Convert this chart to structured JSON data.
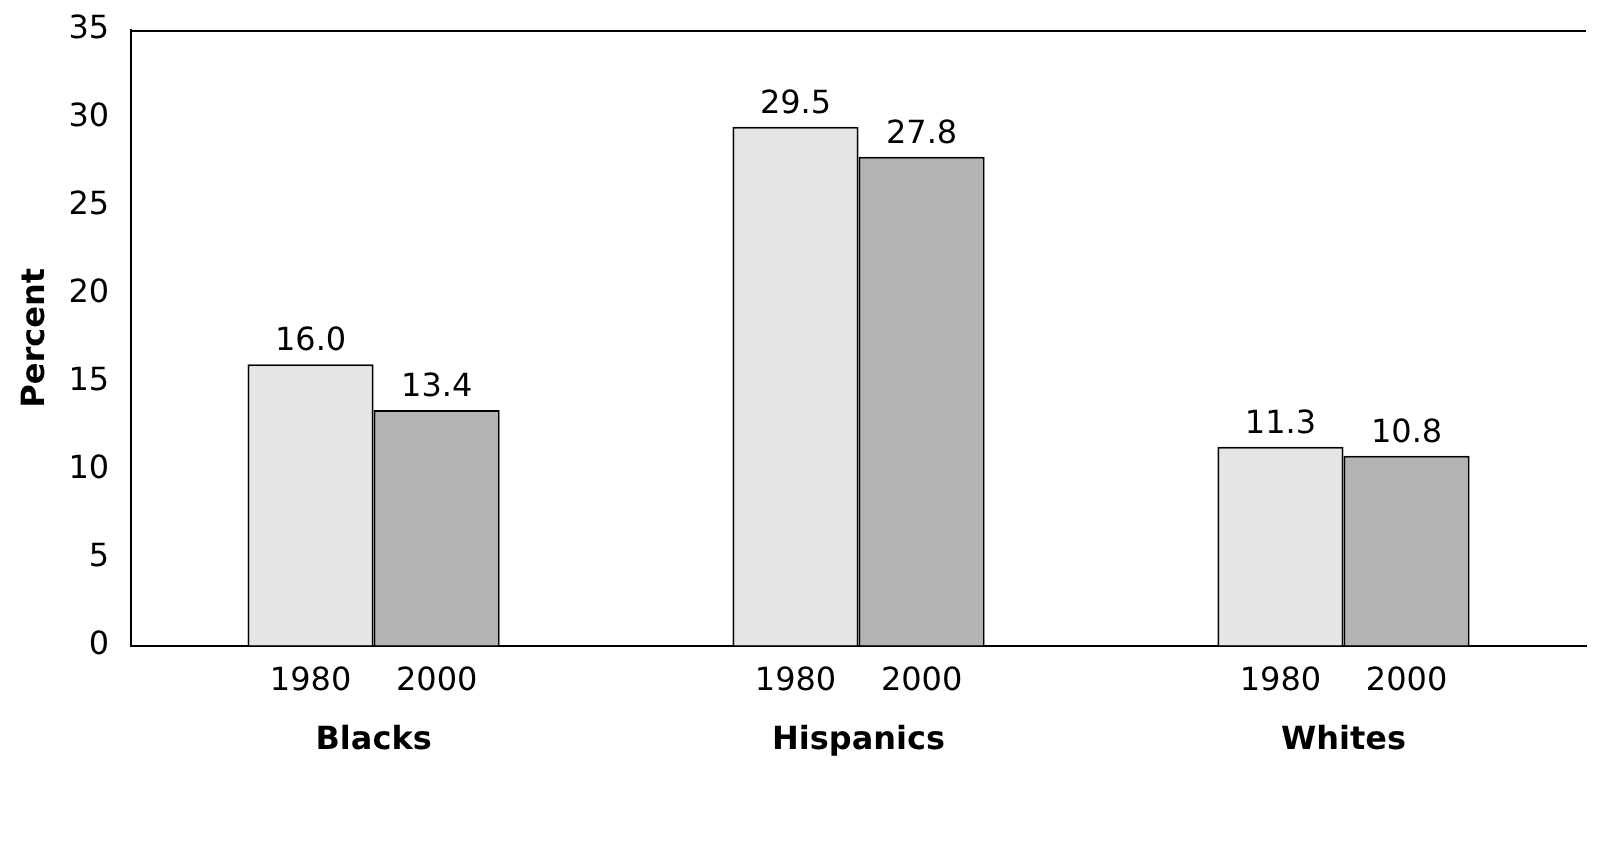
{
  "chart_data": {
    "type": "bar",
    "ylabel": "Percent",
    "categories": [
      "Blacks",
      "Hispanics",
      "Whites"
    ],
    "series": [
      {
        "name": "1980",
        "color": "#e6e6e6",
        "values": [
          16.0,
          29.5,
          11.3
        ],
        "value_labels": [
          "16.0",
          "29.5",
          "11.3"
        ]
      },
      {
        "name": "2000",
        "color": "#b3b3b3",
        "values": [
          13.4,
          27.8,
          10.8
        ],
        "value_labels": [
          "13.4",
          "27.8",
          "10.8"
        ]
      }
    ],
    "ylim": [
      0,
      35
    ],
    "yticks": [
      0,
      5,
      10,
      15,
      20,
      25,
      30,
      35
    ],
    "grid": false,
    "legend": false
  }
}
